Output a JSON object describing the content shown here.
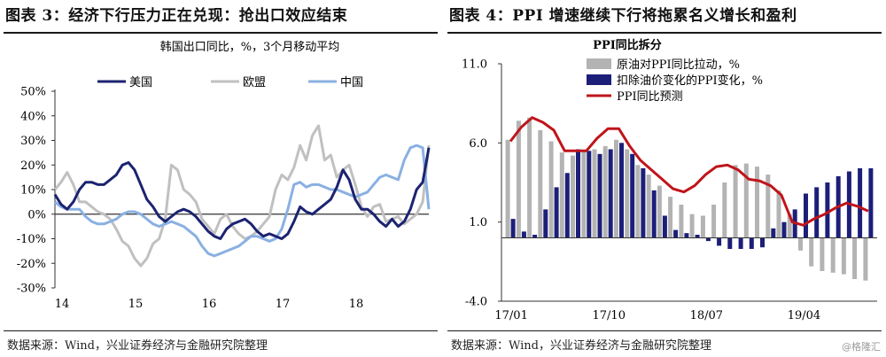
{
  "left": {
    "panel_title": "图表 3：经济下行压力正在兑现：抢出口效应结束",
    "source": "数据来源：Wind，兴业证券经济与金融研究院整理"
  },
  "right": {
    "panel_title": "图表 4：PPI 增速继续下行将拖累名义增长和盈利",
    "source": "数据来源：Wind，兴业证券经济与金融研究院整理"
  },
  "watermark": "@格隆汇",
  "colors": {
    "us": "#1b2370",
    "eu": "#c0c0c0",
    "cn": "#8ab0e2",
    "oil": "#b3b3b3",
    "ex": "#1c1f78",
    "ppi": "#c0141a"
  },
  "chart_data": [
    {
      "type": "line",
      "title": "韩国出口同比，%，3个月移动平均",
      "x_start": "2014-01",
      "x_ticks": [
        "14",
        "15",
        "16",
        "17",
        "18"
      ],
      "y_ticks": [
        "50%",
        "40%",
        "30%",
        "20%",
        "10%",
        "0%",
        "-10%",
        "-20%",
        "-30%"
      ],
      "ylim": [
        -30,
        50
      ],
      "legend_placement": "top",
      "series": [
        {
          "name": "美国",
          "color": "#1b2370",
          "values": [
            8,
            4,
            2,
            5,
            10,
            13,
            13,
            12,
            12,
            14,
            16,
            20,
            21,
            18,
            12,
            6,
            3,
            -1,
            -3,
            -1,
            1,
            2,
            1,
            -1,
            -4,
            -7,
            -9,
            -10,
            -6,
            -4,
            -3,
            -2,
            -4,
            -7,
            -9,
            -8,
            -9,
            -10,
            -8,
            -3,
            3,
            1,
            0,
            2,
            4,
            6,
            11,
            18,
            14,
            6,
            2,
            2,
            0,
            -3,
            -5,
            -2,
            -5,
            -3,
            2,
            10,
            13,
            27
          ]
        },
        {
          "name": "欧盟",
          "color": "#c0c0c0",
          "values": [
            10,
            13,
            17,
            12,
            5,
            5,
            3,
            1,
            0,
            -2,
            -6,
            -11,
            -13,
            -18,
            -21,
            -18,
            -12,
            -10,
            -2,
            20,
            18,
            10,
            8,
            5,
            -2,
            -5,
            -8,
            -2,
            0,
            -5,
            -8,
            -10,
            -9,
            -7,
            -4,
            -1,
            10,
            16,
            14,
            19,
            28,
            22,
            32,
            36,
            22,
            24,
            15,
            18,
            20,
            12,
            3,
            -1,
            3,
            4,
            -3,
            -2,
            -1,
            -4,
            -2,
            0,
            5,
            28
          ]
        },
        {
          "name": "中国",
          "color": "#8ab0e2",
          "values": [
            5,
            3,
            2,
            2,
            2,
            -1,
            -3,
            -4,
            -4,
            -3,
            -2,
            0,
            1,
            1,
            0,
            -2,
            -4,
            -5,
            -4,
            -3,
            -4,
            -5,
            -7,
            -9,
            -13,
            -16,
            -17,
            -16,
            -15,
            -14,
            -13,
            -11,
            -9,
            -9,
            -10,
            -11,
            -10,
            -6,
            2,
            12,
            13,
            11,
            12,
            12,
            11,
            10,
            10,
            9,
            8,
            7,
            8,
            9,
            12,
            15,
            16,
            15,
            14,
            22,
            27,
            28,
            27,
            2
          ]
        }
      ]
    },
    {
      "type": "bar",
      "title": "PPI同比拆分",
      "x_ticks": [
        "17/01",
        "17/10",
        "18/07",
        "19/04"
      ],
      "y_ticks": [
        "11.0",
        "6.0",
        "1.0",
        "-4.0"
      ],
      "ylim": [
        -4,
        11
      ],
      "legend_placement": "top",
      "series": [
        {
          "name": "原油对PPI同比拉动，%",
          "type": "bar",
          "color": "#b3b3b3",
          "values": [
            6.2,
            7.4,
            7.6,
            6.8,
            6.1,
            5.4,
            5.2,
            5.5,
            5.6,
            5.8,
            6.2,
            5.6,
            4.6,
            4.0,
            3.3,
            2.6,
            2.1,
            1.5,
            1.4,
            2.1,
            3.5,
            4.6,
            4.7,
            4.5,
            4.0,
            3.0,
            1.5,
            -0.8,
            -1.8,
            -2.1,
            -2.2,
            -2.3,
            -2.6,
            -2.7
          ]
        },
        {
          "name": "扣除油价变化的PPI变化，%",
          "type": "bar",
          "color": "#1c1f78",
          "values": [
            1.2,
            0.4,
            0.2,
            1.8,
            3.2,
            4.1,
            5.6,
            5.5,
            5.3,
            5.6,
            6.0,
            5.3,
            4.4,
            3.0,
            1.4,
            0.5,
            0.3,
            0.2,
            -0.2,
            -0.5,
            -0.7,
            -0.7,
            -0.7,
            -0.6,
            0.6,
            1.0,
            1.8,
            2.8,
            3.2,
            3.5,
            3.9,
            4.2,
            4.4,
            4.4
          ]
        },
        {
          "name": "PPI同比预测",
          "type": "line",
          "color": "#c0141a",
          "values": [
            6.1,
            7.0,
            7.6,
            7.3,
            6.8,
            5.5,
            5.5,
            5.5,
            6.3,
            6.9,
            6.9,
            5.8,
            4.9,
            4.3,
            3.7,
            3.1,
            2.9,
            3.3,
            4.0,
            4.5,
            4.6,
            4.3,
            3.7,
            3.6,
            3.3,
            2.7,
            1.0,
            0.8,
            1.2,
            1.5,
            1.9,
            2.2,
            2.0,
            1.7
          ]
        }
      ]
    }
  ]
}
